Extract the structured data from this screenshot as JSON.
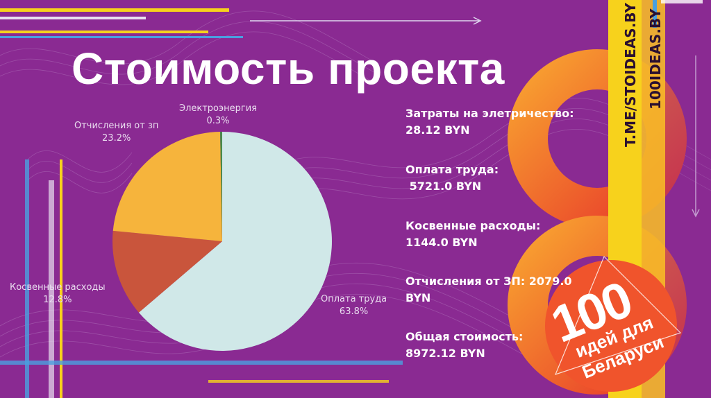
{
  "title": "Стоимость проекта",
  "chart_data": {
    "type": "pie",
    "title": "",
    "slices": [
      {
        "label": "Оплата труда",
        "percent": "63.8%",
        "value": 63.8,
        "color": "#d0e8e8"
      },
      {
        "label": "Косвенные расходы",
        "percent": "12.8%",
        "value": 12.8,
        "color": "#c9553c"
      },
      {
        "label": "Отчисления от зп",
        "percent": "23.2%",
        "value": 23.2,
        "color": "#f6b43c"
      },
      {
        "label": "Электроэнергия",
        "percent": "0.3%",
        "value": 0.3,
        "color": "#4a8a4a"
      }
    ]
  },
  "info": [
    {
      "label": "Затраты на элетричество:",
      "value": "28.12 BYN"
    },
    {
      "label": "Оплата труда:",
      "value": " 5721.0 BYN"
    },
    {
      "label": "Косвенные расходы:",
      "value": "1144.0 BYN"
    },
    {
      "label": "Отчисления от ЗП: 2079.0",
      "value": "BYN"
    },
    {
      "label": "Общая стоимость:",
      "value": "8972.12 BYN"
    }
  ],
  "side": {
    "line1": "T.ME/STOIDEAS.BY",
    "line2": "100IDEAS.BY"
  },
  "badge": {
    "number": "100",
    "line1": "идей для",
    "line2": "Беларуси"
  },
  "colors": {
    "background": "#8a2a92",
    "accent_yellow": "#f7d21c",
    "accent_orange": "#f0542c"
  }
}
